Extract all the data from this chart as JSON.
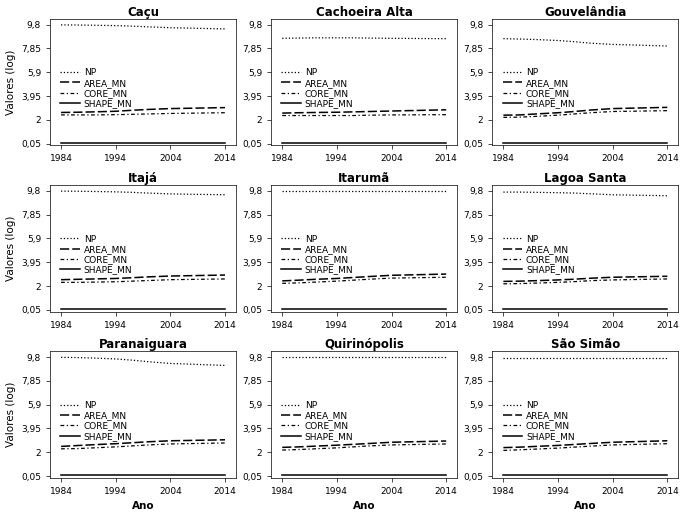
{
  "subplots": [
    {
      "title": "Caçu",
      "NP": [
        9.78,
        9.77,
        9.75,
        9.72,
        9.68,
        9.62,
        9.55,
        9.45
      ],
      "AREA_MN": [
        2.6,
        2.62,
        2.65,
        2.7,
        2.78,
        2.85,
        2.92,
        3.0
      ],
      "CORE_MN": [
        2.4,
        2.4,
        2.4,
        2.42,
        2.45,
        2.48,
        2.52,
        2.58
      ],
      "SHAPE_MN": [
        0.1,
        0.1,
        0.1,
        0.1,
        0.1,
        0.1,
        0.1,
        0.1
      ]
    },
    {
      "title": "Cachoeira Alta",
      "NP": [
        8.68,
        8.7,
        8.72,
        8.72,
        8.72,
        8.7,
        8.68,
        8.65
      ],
      "AREA_MN": [
        2.55,
        2.58,
        2.6,
        2.62,
        2.65,
        2.68,
        2.72,
        2.82
      ],
      "CORE_MN": [
        2.35,
        2.35,
        2.35,
        2.35,
        2.35,
        2.38,
        2.4,
        2.42
      ],
      "SHAPE_MN": [
        0.1,
        0.1,
        0.1,
        0.1,
        0.1,
        0.1,
        0.1,
        0.1
      ]
    },
    {
      "title": "Gouvelândia",
      "NP": [
        8.65,
        8.62,
        8.58,
        8.5,
        8.4,
        8.28,
        8.18,
        8.05
      ],
      "AREA_MN": [
        2.38,
        2.4,
        2.48,
        2.58,
        2.68,
        2.8,
        2.92,
        3.02
      ],
      "CORE_MN": [
        2.2,
        2.22,
        2.28,
        2.38,
        2.48,
        2.58,
        2.68,
        2.75
      ],
      "SHAPE_MN": [
        0.1,
        0.1,
        0.1,
        0.1,
        0.1,
        0.1,
        0.1,
        0.1
      ]
    },
    {
      "title": "Itajá",
      "NP": [
        9.78,
        9.77,
        9.75,
        9.72,
        9.68,
        9.62,
        9.55,
        9.48
      ],
      "AREA_MN": [
        2.52,
        2.55,
        2.58,
        2.62,
        2.68,
        2.75,
        2.82,
        2.9
      ],
      "CORE_MN": [
        2.3,
        2.3,
        2.32,
        2.35,
        2.4,
        2.45,
        2.52,
        2.58
      ],
      "SHAPE_MN": [
        0.1,
        0.1,
        0.1,
        0.1,
        0.1,
        0.1,
        0.1,
        0.1
      ]
    },
    {
      "title": "Itarumã",
      "NP": [
        9.78,
        9.78,
        9.78,
        9.78,
        9.78,
        9.78,
        9.78,
        9.78
      ],
      "AREA_MN": [
        2.42,
        2.48,
        2.55,
        2.62,
        2.7,
        2.78,
        2.88,
        2.98
      ],
      "CORE_MN": [
        2.22,
        2.26,
        2.32,
        2.4,
        2.48,
        2.56,
        2.65,
        2.72
      ],
      "SHAPE_MN": [
        0.1,
        0.1,
        0.1,
        0.1,
        0.1,
        0.1,
        0.1,
        0.1
      ]
    },
    {
      "title": "Lagoa Santa",
      "NP": [
        9.7,
        9.7,
        9.68,
        9.65,
        9.62,
        9.56,
        9.48,
        9.4
      ],
      "AREA_MN": [
        2.38,
        2.4,
        2.44,
        2.5,
        2.56,
        2.64,
        2.72,
        2.8
      ],
      "CORE_MN": [
        2.18,
        2.2,
        2.24,
        2.3,
        2.36,
        2.44,
        2.5,
        2.58
      ],
      "SHAPE_MN": [
        0.1,
        0.1,
        0.1,
        0.1,
        0.1,
        0.1,
        0.1,
        0.1
      ]
    },
    {
      "title": "Paranaiguara",
      "NP": [
        9.78,
        9.76,
        9.72,
        9.65,
        9.55,
        9.42,
        9.28,
        9.12
      ],
      "AREA_MN": [
        2.48,
        2.55,
        2.62,
        2.7,
        2.78,
        2.86,
        2.94,
        3.02
      ],
      "CORE_MN": [
        2.28,
        2.3,
        2.36,
        2.44,
        2.52,
        2.6,
        2.68,
        2.76
      ],
      "SHAPE_MN": [
        0.1,
        0.1,
        0.1,
        0.1,
        0.1,
        0.1,
        0.1,
        0.1
      ]
    },
    {
      "title": "Quirinópolis",
      "NP": [
        9.78,
        9.78,
        9.78,
        9.78,
        9.78,
        9.78,
        9.78,
        9.78
      ],
      "AREA_MN": [
        2.4,
        2.44,
        2.5,
        2.58,
        2.65,
        2.72,
        2.82,
        2.92
      ],
      "CORE_MN": [
        2.18,
        2.22,
        2.28,
        2.36,
        2.44,
        2.52,
        2.6,
        2.68
      ],
      "SHAPE_MN": [
        0.1,
        0.1,
        0.1,
        0.1,
        0.1,
        0.1,
        0.1,
        0.1
      ]
    },
    {
      "title": "São Simão",
      "NP": [
        9.72,
        9.72,
        9.72,
        9.72,
        9.72,
        9.72,
        9.72,
        9.72
      ],
      "AREA_MN": [
        2.38,
        2.42,
        2.48,
        2.56,
        2.64,
        2.72,
        2.82,
        2.94
      ],
      "CORE_MN": [
        2.15,
        2.2,
        2.26,
        2.34,
        2.42,
        2.5,
        2.6,
        2.7
      ],
      "SHAPE_MN": [
        0.1,
        0.1,
        0.1,
        0.1,
        0.1,
        0.1,
        0.1,
        0.1
      ]
    }
  ],
  "years": [
    1984,
    1987,
    1990,
    1994,
    1997,
    2000,
    2004,
    2014
  ],
  "yticks": [
    0.05,
    2.0,
    3.95,
    5.9,
    7.85,
    9.8
  ],
  "ytick_labels": [
    "0,05",
    "2",
    "3,95",
    "5,9",
    "7,85",
    "9,8"
  ],
  "ylim": [
    -0.1,
    10.3
  ],
  "xlim": [
    1982,
    2016
  ],
  "xticks": [
    1984,
    1994,
    2004,
    2014
  ],
  "ylabel": "Valores (log)",
  "xlabel": "Ano",
  "legend_labels": [
    "NP",
    "AREA_MN",
    "CORE_MN",
    "SHAPE_MN"
  ],
  "title_fontsize": 8.5,
  "tick_fontsize": 6.5,
  "label_fontsize": 7.5,
  "legend_fontsize": 6.5
}
